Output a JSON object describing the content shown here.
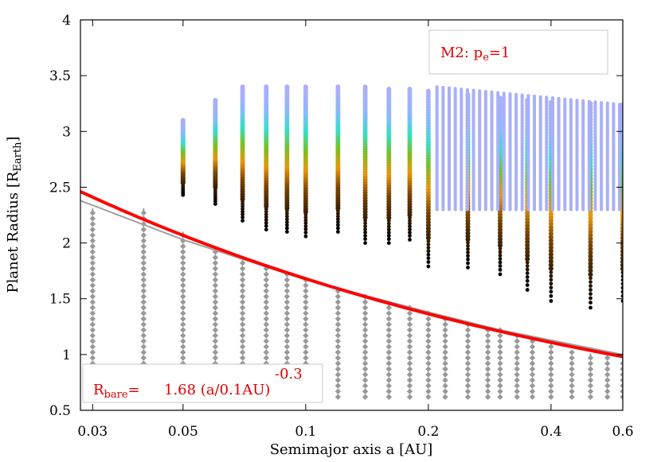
{
  "chart_data": {
    "type": "scatter",
    "title": "",
    "xlabel": "Semimajor axis a [AU]",
    "ylabel_main": "Planet Radius [R",
    "ylabel_sub": "Earth",
    "ylabel_close": "]",
    "xscale": "log",
    "xlim": [
      0.028,
      0.6
    ],
    "ylim": [
      0.5,
      4.0
    ],
    "xticks": [
      0.03,
      0.05,
      0.1,
      0.2,
      0.4,
      0.6
    ],
    "xtick_labels": [
      "0.03",
      "0.05",
      "0.1",
      "0.2",
      "0.4",
      "0.6"
    ],
    "yticks": [
      0.5,
      1,
      1.5,
      2,
      2.5,
      3,
      3.5,
      4
    ],
    "ytick_labels": [
      "0.5",
      "1",
      "1.5",
      "2",
      "2.5",
      "3",
      "3.5",
      "4"
    ],
    "legend_model": {
      "position": "top-right",
      "text_main": "M2: p",
      "text_sub": "e",
      "text_tail": "=1"
    },
    "legend_fit": {
      "position": "bottom-left",
      "r_main": "R",
      "r_sub": "bare",
      "r_eq": "=",
      "formula": "1.68 (a/0.1AU)",
      "exponent": "-0.3"
    },
    "colors": {
      "fit": "#ff0000",
      "gray_line": "#a0a0a0",
      "bare_points": "#999999",
      "envelope_palette": [
        "#000000",
        "#3a2000",
        "#7a4400",
        "#e8960a",
        "#78c020",
        "#34e0c8",
        "#8ab8ff",
        "#a8b0f8"
      ]
    },
    "series": [
      {
        "name": "fit line (red)",
        "kind": "line",
        "function": "R = 1.68 * (a/0.1)^-0.3",
        "coefficient": 1.68,
        "exponent": -0.3
      },
      {
        "name": "gray line",
        "kind": "line",
        "x": [
          0.028,
          0.05,
          0.1,
          0.2,
          0.3,
          0.6
        ],
        "y": [
          2.38,
          2.03,
          1.67,
          1.38,
          1.22,
          1.0
        ]
      },
      {
        "name": "bare cores",
        "kind": "scatter-grid",
        "y_min": 0.62,
        "y_step": 0.05,
        "column_tops": [
          [
            0.03,
            2.31
          ],
          [
            0.04,
            2.31
          ],
          [
            0.05,
            2.1
          ],
          [
            0.06,
            1.95
          ],
          [
            0.07,
            1.85
          ],
          [
            0.08,
            1.78
          ],
          [
            0.09,
            1.72
          ],
          [
            0.1,
            1.67
          ],
          [
            0.12,
            1.58
          ],
          [
            0.14,
            1.52
          ],
          [
            0.16,
            1.46
          ],
          [
            0.18,
            1.42
          ],
          [
            0.2,
            1.38
          ],
          [
            0.22,
            1.34
          ],
          [
            0.25,
            1.3
          ],
          [
            0.28,
            1.25
          ],
          [
            0.3,
            1.22
          ],
          [
            0.33,
            1.17
          ],
          [
            0.36,
            1.14
          ],
          [
            0.4,
            1.1
          ],
          [
            0.45,
            1.03
          ],
          [
            0.5,
            1.01
          ],
          [
            0.55,
            0.98
          ],
          [
            0.6,
            0.96
          ]
        ]
      },
      {
        "name": "planets with envelope",
        "kind": "scatter-columns",
        "y_max": 3.4,
        "y_max_right": 3.24,
        "columns": [
          [
            0.05,
            2.43,
            3.1
          ],
          [
            0.06,
            2.35,
            3.28
          ],
          [
            0.07,
            2.2,
            3.4
          ],
          [
            0.08,
            2.12,
            3.4
          ],
          [
            0.09,
            2.1,
            3.4
          ],
          [
            0.1,
            2.06,
            3.4
          ],
          [
            0.12,
            2.1,
            3.4
          ],
          [
            0.14,
            2.0,
            3.4
          ],
          [
            0.16,
            2.0,
            3.38
          ],
          [
            0.18,
            2.03,
            3.38
          ],
          [
            0.2,
            1.79,
            3.36
          ],
          [
            0.25,
            1.78,
            3.33
          ],
          [
            0.3,
            1.72,
            3.3
          ],
          [
            0.35,
            1.58,
            3.28
          ],
          [
            0.4,
            1.48,
            3.26
          ],
          [
            0.5,
            1.42,
            3.25
          ],
          [
            0.6,
            1.48,
            3.24
          ]
        ]
      }
    ]
  }
}
